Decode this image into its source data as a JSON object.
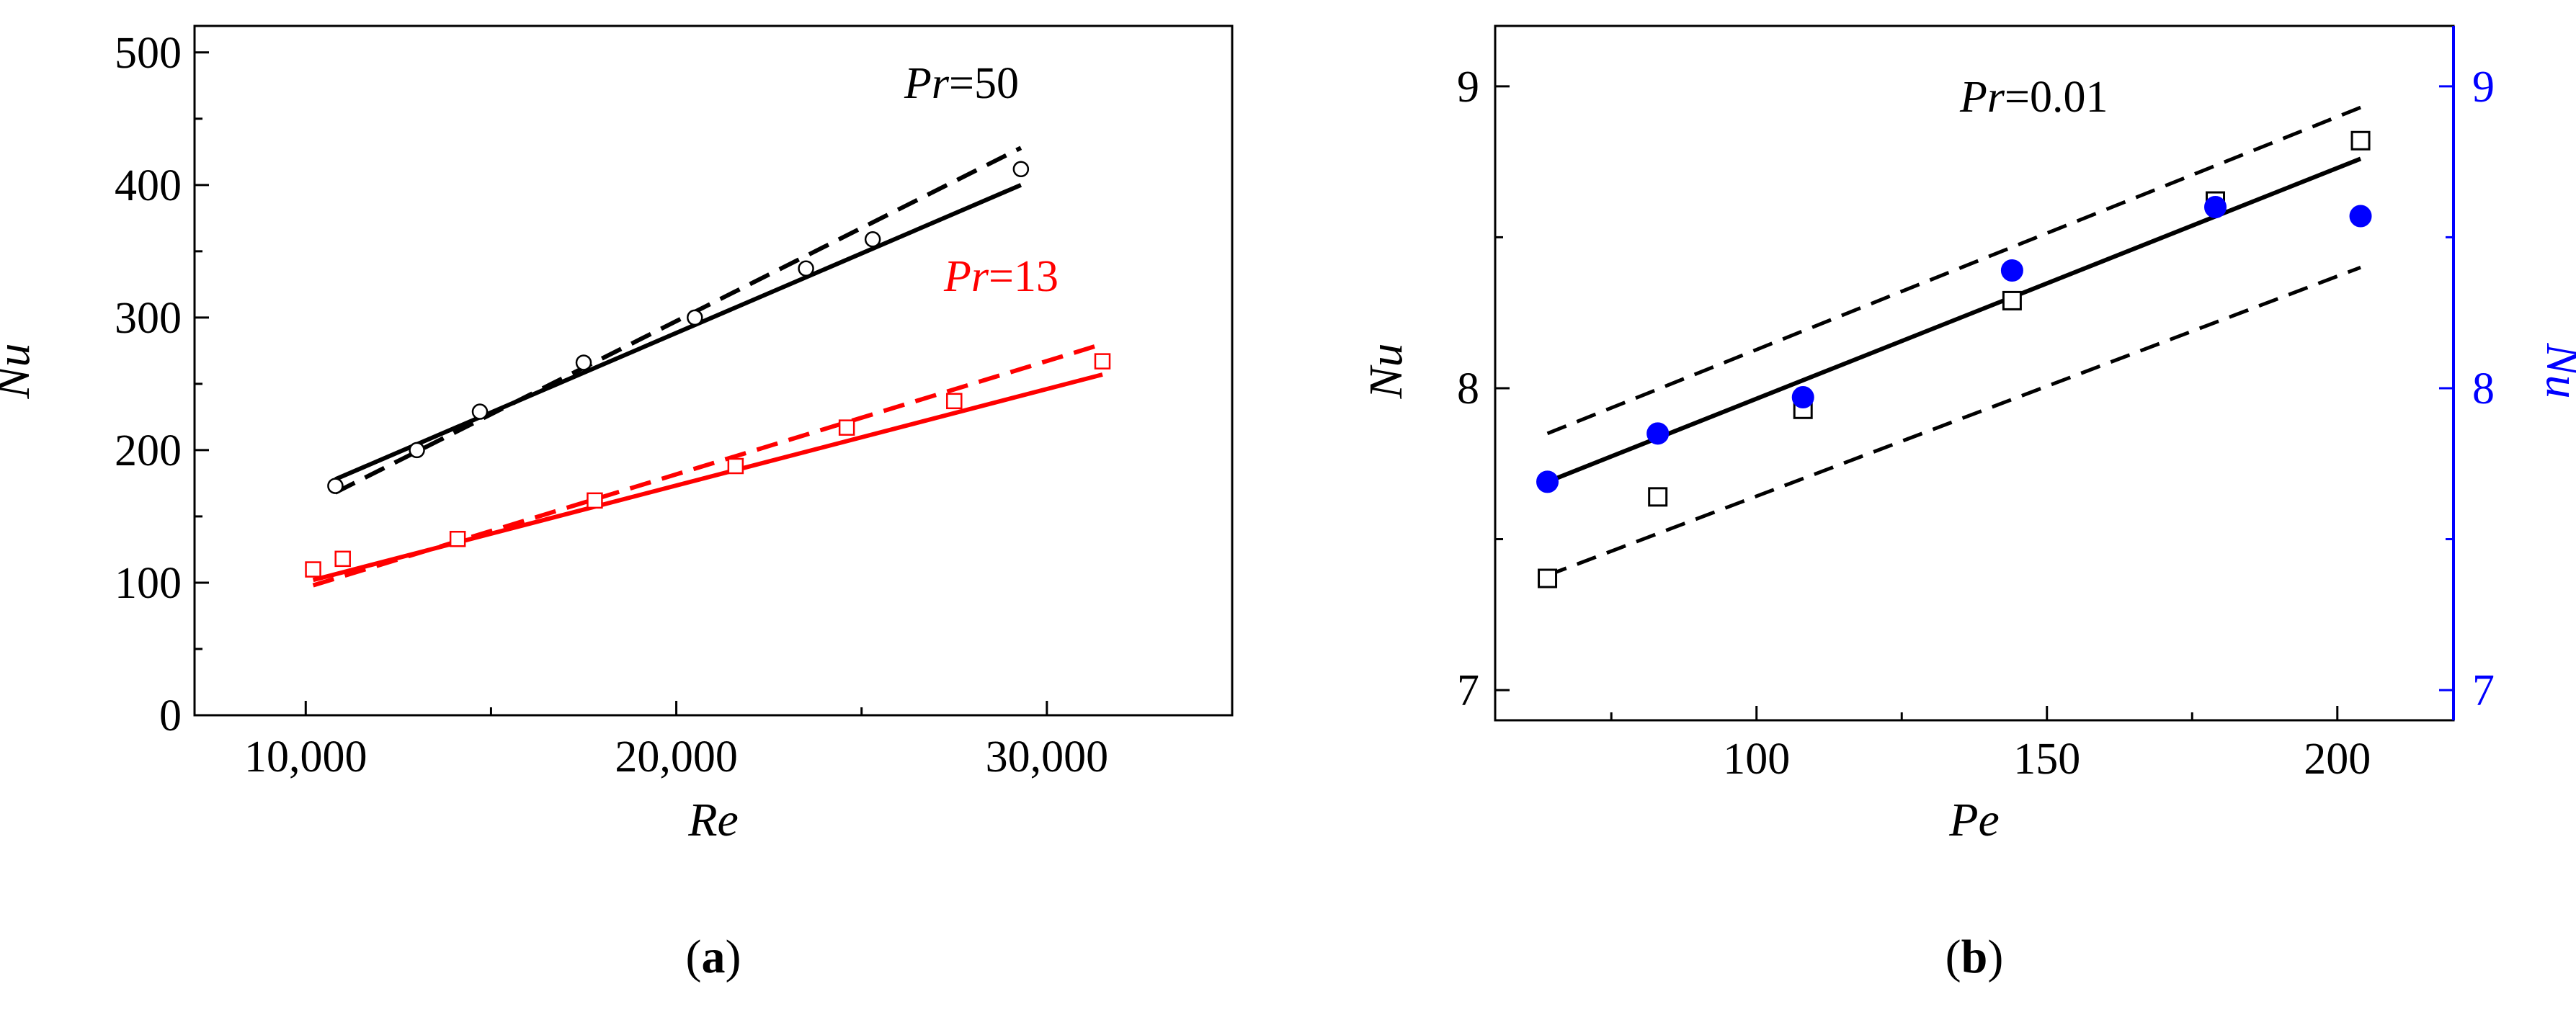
{
  "chart_data": [
    {
      "panel_label": "a",
      "type": "scatter",
      "xlabel": "Re",
      "ylabel": "Nu",
      "xlim": [
        7000,
        35000
      ],
      "ylim": [
        0,
        520
      ],
      "x_ticks": [
        10000,
        20000,
        30000
      ],
      "x_tick_labels": [
        "10,000",
        "20,000",
        "30,000"
      ],
      "y_ticks": [
        0,
        100,
        200,
        300,
        400,
        500
      ],
      "y_tick_labels": [
        "0",
        "100",
        "200",
        "300",
        "400",
        "500"
      ],
      "series": [
        {
          "name": "Pr=50",
          "color": "#000000",
          "marker": "circle",
          "label_symbol": "Pr",
          "label_value": "=50",
          "points": [
            [
              10800,
              173
            ],
            [
              13000,
              200
            ],
            [
              14700,
              229
            ],
            [
              17500,
              266
            ],
            [
              20500,
              300
            ],
            [
              23500,
              337
            ],
            [
              25300,
              359
            ],
            [
              29300,
              412
            ]
          ],
          "fit_solid": [
            [
              10800,
              178
            ],
            [
              29300,
              400
            ]
          ],
          "fit_dashed": [
            [
              10800,
              168
            ],
            [
              29300,
              428
            ]
          ]
        },
        {
          "name": "Pr=13",
          "color": "#ff0000",
          "marker": "square",
          "label_symbol": "Pr",
          "label_value": "=13",
          "points": [
            [
              10200,
              110
            ],
            [
              11000,
              118
            ],
            [
              14100,
              133
            ],
            [
              17800,
              162
            ],
            [
              21600,
              188
            ],
            [
              24600,
              217
            ],
            [
              27500,
              237
            ],
            [
              31500,
              267
            ]
          ],
          "fit_solid": [
            [
              10200,
              102
            ],
            [
              31500,
              257
            ]
          ],
          "fit_dashed": [
            [
              10200,
              98
            ],
            [
              31500,
              280
            ]
          ]
        }
      ]
    },
    {
      "panel_label": "b",
      "type": "scatter",
      "xlabel": "Pe",
      "ylabel": "Nu",
      "ylabel_right": "Nu",
      "xlim": [
        55,
        220
      ],
      "ylim": [
        6.9,
        9.2
      ],
      "x_ticks": [
        100,
        150,
        200
      ],
      "x_tick_labels": [
        "100",
        "150",
        "200"
      ],
      "x_minor_ticks": [
        75,
        125,
        175
      ],
      "y_ticks": [
        7,
        8,
        9
      ],
      "y_tick_labels": [
        "7",
        "8",
        "9"
      ],
      "y_right_ticks": [
        7,
        8,
        9
      ],
      "y_right_tick_labels": [
        "7",
        "8",
        "9"
      ],
      "annotation_symbol": "Pr",
      "annotation_value": "=0.01",
      "series": [
        {
          "name": "open squares",
          "color": "#000000",
          "marker": "square-open",
          "points": [
            [
              64,
              7.37
            ],
            [
              83,
              7.64
            ],
            [
              108,
              7.93
            ],
            [
              144,
              8.29
            ],
            [
              179,
              8.62
            ],
            [
              204,
              8.82
            ]
          ]
        },
        {
          "name": "filled circles",
          "color": "#0000ff",
          "marker": "circle-filled",
          "points": [
            [
              64,
              7.69
            ],
            [
              83,
              7.85
            ],
            [
              108,
              7.97
            ],
            [
              144,
              8.39
            ],
            [
              179,
              8.6
            ],
            [
              204,
              8.57
            ]
          ]
        }
      ],
      "fit_solid": [
        [
          64,
          7.69
        ],
        [
          204,
          8.76
        ]
      ],
      "fit_dashed_upper": [
        [
          64,
          7.85
        ],
        [
          204,
          8.93
        ]
      ],
      "fit_dashed_lower": [
        [
          64,
          7.38
        ],
        [
          204,
          8.4
        ]
      ]
    }
  ],
  "captions": [
    "a",
    "b"
  ]
}
